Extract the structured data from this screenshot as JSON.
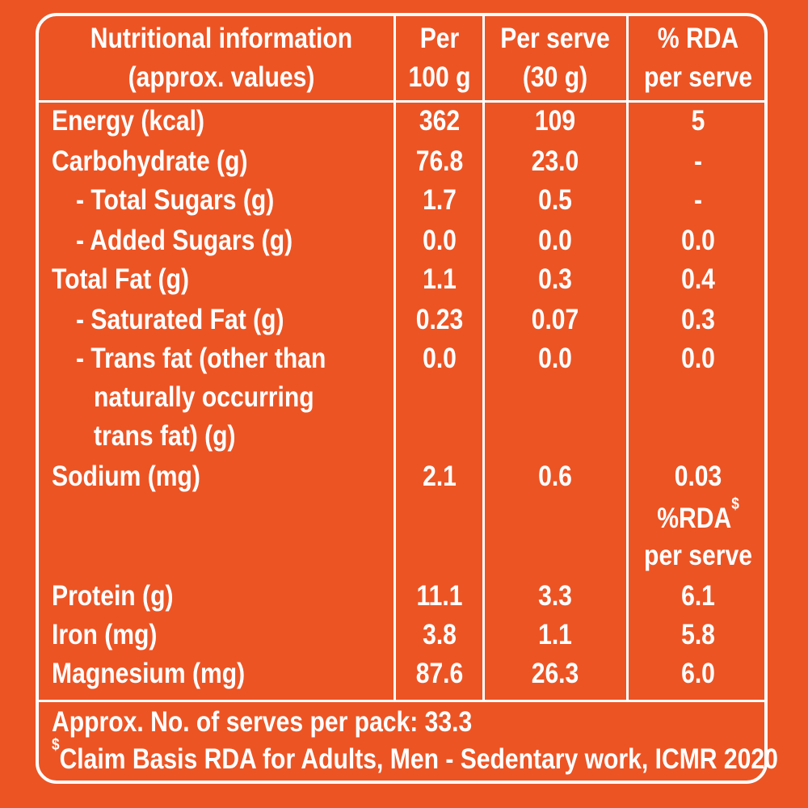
{
  "header": {
    "col1_line1": "Nutritional information",
    "col1_line2": "(approx. values)",
    "col2_line1": "Per",
    "col2_line2": "100 g",
    "col3_line1": "Per serve",
    "col3_line2": "(30 g)",
    "col4_line1": "% RDA",
    "col4_line2": "per serve"
  },
  "rows": [
    {
      "label": "Energy (kcal)",
      "per100": "362",
      "perServe": "109",
      "rda": "5"
    },
    {
      "label": "Carbohydrate (g)",
      "per100": "76.8",
      "perServe": "23.0",
      "rda": "-"
    },
    {
      "label": "- Total Sugars (g)",
      "per100": "1.7",
      "perServe": "0.5",
      "rda": "-"
    },
    {
      "label": "- Added Sugars (g)",
      "per100": "0.0",
      "perServe": "0.0",
      "rda": "0.0"
    },
    {
      "label": "Total Fat (g)",
      "per100": "1.1",
      "perServe": "0.3",
      "rda": "0.4"
    },
    {
      "label": "- Saturated Fat (g)",
      "per100": "0.23",
      "perServe": "0.07",
      "rda": "0.3"
    },
    {
      "label": "- Trans fat (other than",
      "label_line2": "naturally occurring",
      "label_line3": "trans fat) (g)",
      "per100": "0.0",
      "perServe": "0.0",
      "rda": "0.0"
    },
    {
      "label": "Sodium (mg)",
      "per100": "2.1",
      "perServe": "0.6",
      "rda": "0.03"
    },
    {
      "label": "Protein (g)",
      "per100": "11.1",
      "perServe": "3.3",
      "rda": "6.1"
    },
    {
      "label": "Iron (mg)",
      "per100": "3.8",
      "perServe": "1.1",
      "rda": "5.8"
    },
    {
      "label": "Magnesium (mg)",
      "per100": "87.6",
      "perServe": "26.3",
      "rda": "6.0"
    }
  ],
  "sub_header": {
    "line1": "%RDA",
    "line1_sup": "$",
    "line2": "per serve"
  },
  "footer": {
    "serves": "Approx. No. of serves per pack: 33.3",
    "claim_sup": "$",
    "claim": "Claim Basis RDA for Adults, Men - Sedentary work, ICMR 2020"
  },
  "colors": {
    "background": "#ec5424",
    "text": "#ffffff"
  }
}
